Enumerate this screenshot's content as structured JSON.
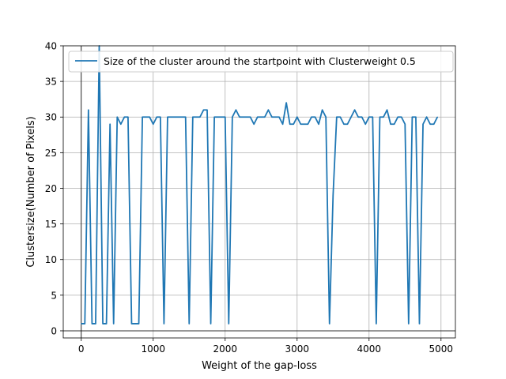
{
  "chart_data": {
    "type": "line",
    "title": "",
    "xlabel": "Weight of the gap-loss",
    "ylabel": "Clustersize(Number of Pixels)",
    "xlim": [
      -250,
      5200
    ],
    "ylim": [
      -1,
      40
    ],
    "xticks": [
      0,
      1000,
      2000,
      3000,
      4000,
      5000
    ],
    "yticks": [
      0,
      5,
      10,
      15,
      20,
      25,
      30,
      35,
      40
    ],
    "xtick_labels": [
      "0",
      "1000",
      "2000",
      "3000",
      "4000",
      "5000"
    ],
    "ytick_labels": [
      "0",
      "5",
      "10",
      "15",
      "20",
      "25",
      "30",
      "35",
      "40"
    ],
    "grid": true,
    "legend_position": "top-right",
    "line_color": "#1f77b4",
    "series": [
      {
        "name": "Size of the cluster around the startpoint with Clusterweight 0.5",
        "x": [
          0,
          50,
          100,
          150,
          200,
          250,
          300,
          350,
          400,
          450,
          500,
          550,
          600,
          650,
          700,
          750,
          800,
          850,
          900,
          950,
          1000,
          1050,
          1100,
          1150,
          1200,
          1250,
          1300,
          1350,
          1400,
          1450,
          1500,
          1550,
          1600,
          1650,
          1700,
          1750,
          1800,
          1850,
          1900,
          1950,
          2000,
          2050,
          2100,
          2150,
          2200,
          2250,
          2300,
          2350,
          2400,
          2450,
          2500,
          2550,
          2600,
          2650,
          2700,
          2750,
          2800,
          2850,
          2900,
          2950,
          3000,
          3050,
          3100,
          3150,
          3200,
          3250,
          3300,
          3350,
          3400,
          3450,
          3500,
          3550,
          3600,
          3650,
          3700,
          3750,
          3800,
          3850,
          3900,
          3950,
          4000,
          4050,
          4100,
          4150,
          4200,
          4250,
          4300,
          4350,
          4400,
          4450,
          4500,
          4550,
          4600,
          4650,
          4700,
          4750,
          4800,
          4850,
          4900,
          4950
        ],
        "values": [
          1,
          1,
          31,
          1,
          1,
          41,
          1,
          1,
          29,
          1,
          30,
          29,
          30,
          30,
          1,
          1,
          1,
          30,
          30,
          30,
          29,
          30,
          30,
          1,
          30,
          30,
          30,
          30,
          30,
          30,
          1,
          30,
          30,
          30,
          31,
          31,
          1,
          30,
          30,
          30,
          30,
          1,
          30,
          31,
          30,
          30,
          30,
          30,
          29,
          30,
          30,
          30,
          31,
          30,
          30,
          30,
          29,
          32,
          29,
          29,
          30,
          29,
          29,
          29,
          30,
          30,
          29,
          31,
          30,
          1,
          19,
          30,
          30,
          29,
          29,
          30,
          31,
          30,
          30,
          29,
          30,
          30,
          1,
          30,
          30,
          31,
          29,
          29,
          30,
          30,
          29,
          1,
          30,
          30,
          1,
          29,
          30,
          29,
          29,
          30
        ]
      }
    ]
  }
}
